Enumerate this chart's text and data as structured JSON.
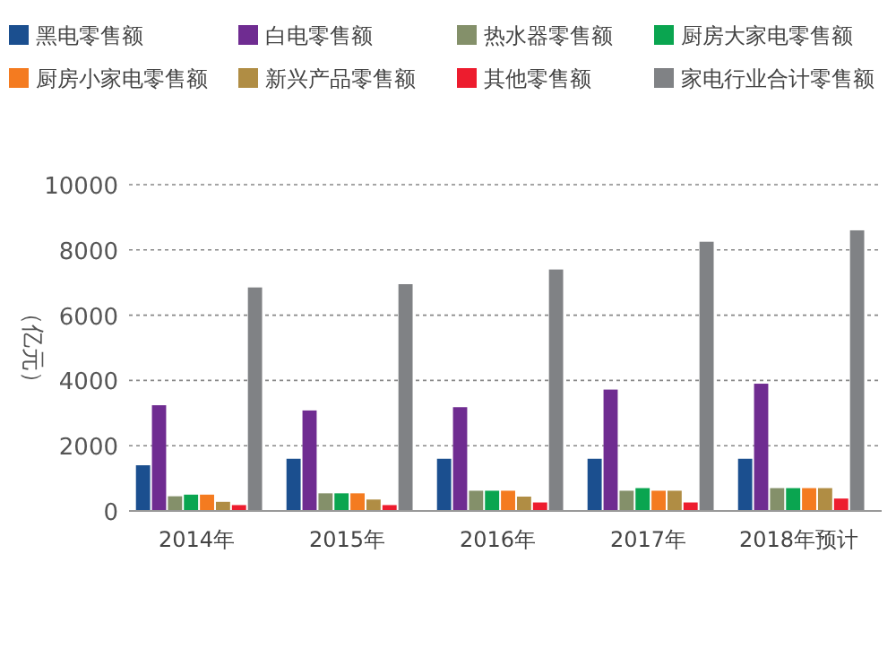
{
  "chart_data": {
    "type": "bar",
    "ylabel": "（亿元）",
    "categories": [
      "2014年",
      "2015年",
      "2016年",
      "2017年",
      "2018年预计"
    ],
    "series": [
      {
        "name": "黑电零售额",
        "color": "#1b4f8f",
        "values": [
          1400,
          1600,
          1600,
          1600,
          1600
        ]
      },
      {
        "name": "白电零售额",
        "color": "#6f2c91",
        "values": [
          3240,
          3080,
          3180,
          3720,
          3900
        ]
      },
      {
        "name": "热水器零售额",
        "color": "#84906a",
        "values": [
          450,
          540,
          620,
          620,
          700
        ]
      },
      {
        "name": "厨房大家电零售额",
        "color": "#0aa550",
        "values": [
          500,
          540,
          620,
          700,
          700
        ]
      },
      {
        "name": "厨房小家电零售额",
        "color": "#f47b20",
        "values": [
          500,
          540,
          620,
          620,
          700
        ]
      },
      {
        "name": "新兴产品零售额",
        "color": "#b08d44",
        "values": [
          280,
          350,
          440,
          620,
          700
        ]
      },
      {
        "name": "其他零售额",
        "color": "#ed1c2e",
        "values": [
          180,
          180,
          260,
          260,
          380
        ]
      },
      {
        "name": "家电行业合计零售额",
        "color": "#808285",
        "values": [
          6850,
          6950,
          7400,
          8250,
          8600
        ]
      }
    ],
    "ylim": [
      0,
      10000
    ],
    "yticks": [
      0,
      2000,
      4000,
      6000,
      8000,
      10000
    ],
    "grid": "y",
    "legend": "top"
  }
}
